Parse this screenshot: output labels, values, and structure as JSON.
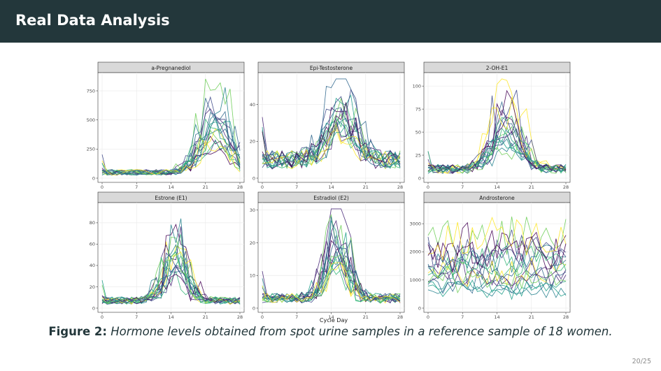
{
  "slide": {
    "title": "Real Data Analysis",
    "caption_label": "Figure 2:",
    "caption_text": "Hormone levels obtained from spot urine samples in a reference sample of 18 women.",
    "page_number": "20/25"
  },
  "chart_data": [
    {
      "type": "line",
      "title": "a-Pregnanediol",
      "xlabel": "Cycle Day",
      "xticks": [
        0,
        7,
        14,
        21,
        28
      ],
      "xlim": [
        0,
        28
      ],
      "ylim": [
        0,
        870
      ],
      "yticks": [
        0,
        250,
        500,
        750
      ],
      "ytick_labels": [
        "0",
        "250",
        "500",
        "750"
      ],
      "num_series": 18,
      "baseline": 50,
      "peak_center": 23,
      "peak_width": 4,
      "peak_values": [
        310,
        420,
        460,
        520,
        250,
        820,
        620,
        300,
        380,
        190,
        440,
        560,
        270,
        600,
        350,
        480,
        230,
        650
      ]
    },
    {
      "type": "line",
      "title": "Epi-Testosterone",
      "xlabel": "Cycle Day",
      "xticks": [
        0,
        7,
        14,
        21,
        28
      ],
      "xlim": [
        0,
        28
      ],
      "ylim": [
        0,
        55
      ],
      "yticks": [
        0,
        20,
        40
      ],
      "ytick_labels": [
        "0",
        "20",
        "40"
      ],
      "num_series": 18,
      "baseline": 10,
      "peak_center": 16,
      "peak_width": 4,
      "peak_values": [
        14,
        18,
        22,
        30,
        45,
        12,
        20,
        26,
        33,
        16,
        24,
        38,
        19,
        28,
        15,
        22,
        27,
        17
      ]
    },
    {
      "type": "line",
      "title": "2-OH-E1",
      "xlabel": "Cycle Day",
      "xticks": [
        0,
        7,
        14,
        21,
        28
      ],
      "xlim": [
        0,
        28
      ],
      "ylim": [
        0,
        110
      ],
      "yticks": [
        0,
        25,
        50,
        75,
        100
      ],
      "ytick_labels": [
        "0",
        "25",
        "50",
        "75",
        "100"
      ],
      "num_series": 18,
      "baseline": 10,
      "peak_center": 16,
      "peak_width": 4,
      "peak_values": [
        30,
        45,
        60,
        95,
        25,
        70,
        40,
        55,
        35,
        80,
        20,
        50,
        65,
        30,
        45,
        28,
        38,
        52
      ]
    },
    {
      "type": "line",
      "title": "Estrone (E1)",
      "xlabel": "Cycle Day",
      "xticks": [
        0,
        7,
        14,
        21,
        28
      ],
      "xlim": [
        0,
        28
      ],
      "ylim": [
        0,
        95
      ],
      "yticks": [
        0,
        20,
        40,
        60,
        80
      ],
      "ytick_labels": [
        "0",
        "20",
        "40",
        "60",
        "80"
      ],
      "num_series": 18,
      "baseline": 7,
      "peak_center": 15,
      "peak_width": 3,
      "peak_values": [
        30,
        45,
        52,
        80,
        38,
        60,
        25,
        42,
        55,
        35,
        48,
        65,
        28,
        40,
        33,
        50,
        44,
        36
      ]
    },
    {
      "type": "line",
      "title": "Estradiol (E2)",
      "xlabel": "Cycle Day",
      "xticks": [
        0,
        7,
        14,
        21,
        28
      ],
      "xlim": [
        0,
        28
      ],
      "ylim": [
        0,
        31
      ],
      "yticks": [
        0,
        10,
        20,
        30
      ],
      "ytick_labels": [
        "0",
        "10",
        "20",
        "30"
      ],
      "num_series": 18,
      "baseline": 3,
      "peak_center": 15,
      "peak_width": 3,
      "peak_values": [
        12,
        18,
        22,
        30,
        10,
        15,
        25,
        20,
        8,
        16,
        19,
        14,
        27,
        11,
        17,
        13,
        21,
        9
      ]
    },
    {
      "type": "line",
      "title": "Androsterone",
      "xlabel": "Cycle Day",
      "xticks": [
        0,
        7,
        14,
        21,
        28
      ],
      "xlim": [
        0,
        28
      ],
      "ylim": [
        0,
        3600
      ],
      "yticks": [
        0,
        1000,
        2000,
        3000
      ],
      "ytick_labels": [
        "0",
        "1000",
        "2000",
        "3000"
      ],
      "num_series": 18,
      "flat": true,
      "levels": [
        800,
        1200,
        1500,
        2000,
        2500,
        900,
        1300,
        1700,
        2200,
        700,
        1100,
        1600,
        1900,
        1000,
        1400,
        2400,
        600,
        1800
      ]
    }
  ],
  "colors": {
    "palette": [
      "#440154",
      "#482878",
      "#3e4989",
      "#31688e",
      "#26828e",
      "#1f9e89",
      "#35b779",
      "#6ece58",
      "#fde725"
    ],
    "strip": "#d9d9d9",
    "panel_border": "#333333",
    "grid": "#ebebeb",
    "title_bar": "#23373b"
  }
}
